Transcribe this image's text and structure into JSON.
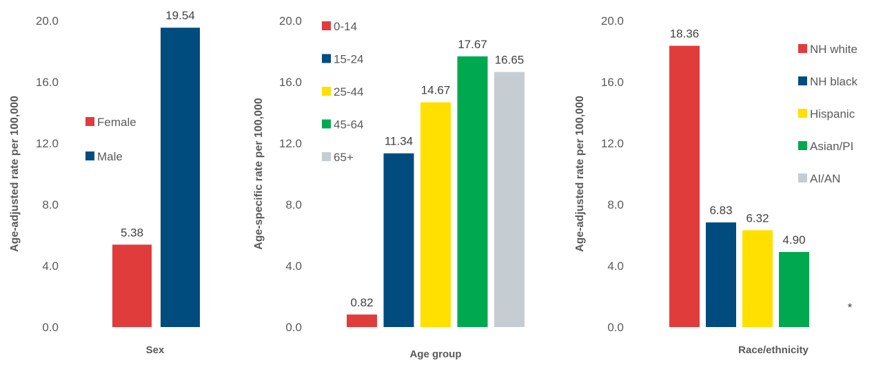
{
  "chart_data": [
    {
      "type": "bar",
      "xlabel": "Sex",
      "ylabel": "Age-adjusted rate per 100,000",
      "ylim": [
        0,
        20
      ],
      "yticks": [
        "0.0",
        "4.0",
        "8.0",
        "12.0",
        "16.0",
        "20.0"
      ],
      "categories": [
        "Female",
        "Male"
      ],
      "values": [
        5.38,
        19.54
      ],
      "value_labels": [
        "5.38",
        "19.54"
      ],
      "colors": [
        "#e03c3c",
        "#004c7f"
      ],
      "legend": [
        "Female",
        "Male"
      ],
      "legend_position": "left"
    },
    {
      "type": "bar",
      "xlabel": "Age group",
      "ylabel": "Age-specific rate per 100,000",
      "ylim": [
        0,
        20
      ],
      "yticks": [
        "0.0",
        "4.0",
        "8.0",
        "12.0",
        "16.0",
        "20.0"
      ],
      "categories": [
        "0-14",
        "15-24",
        "25-44",
        "45-64",
        "65+"
      ],
      "values": [
        0.82,
        11.34,
        14.67,
        17.67,
        16.65
      ],
      "value_labels": [
        "0.82",
        "11.34",
        "14.67",
        "17.67",
        "16.65"
      ],
      "colors": [
        "#e03c3c",
        "#004c7f",
        "#ffe000",
        "#00a84f",
        "#c5cdd3"
      ],
      "legend": [
        "0-14",
        "15-24",
        "25-44",
        "45-64",
        "65+"
      ],
      "legend_position": "left"
    },
    {
      "type": "bar",
      "xlabel": "Race/ethnicity",
      "ylabel": "Age-adjusted rate per 100,000",
      "ylim": [
        0,
        20
      ],
      "yticks": [
        "0.0",
        "4.0",
        "8.0",
        "12.0",
        "16.0",
        "20.0"
      ],
      "categories": [
        "NH white",
        "NH black",
        "Hispanic",
        "Asian/PI",
        "AI/AN"
      ],
      "values": [
        18.36,
        6.83,
        6.32,
        4.9,
        null
      ],
      "value_labels": [
        "18.36",
        "6.83",
        "6.32",
        "4.90",
        "*"
      ],
      "colors": [
        "#e03c3c",
        "#004c7f",
        "#ffe000",
        "#00a84f",
        "#c5cdd3"
      ],
      "legend": [
        "NH white",
        "NH black",
        "Hispanic",
        "Asian/PI",
        "AI/AN"
      ],
      "legend_position": "right"
    }
  ]
}
